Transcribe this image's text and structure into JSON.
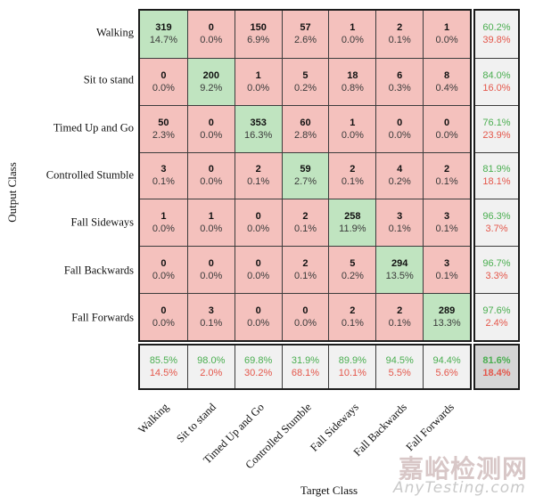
{
  "watermark": {
    "text": "嘉峪检测网",
    "url": "AnyTesting.com"
  },
  "colors": {
    "diagonal_cell": "#c0e4c0",
    "off_diagonal_cell": "#f4c1bd",
    "summary_cell": "#f1f1f1",
    "overall_cell": "#d5d5d5",
    "correct_text": "#4aae50",
    "incorrect_text": "#e4564a"
  },
  "chart_data": {
    "type": "heatmap",
    "title": "",
    "xlabel": "Target Class",
    "ylabel": "Output Class",
    "legend_position": "none",
    "grid": true,
    "classes": [
      "Walking",
      "Sit to stand",
      "Timed Up and Go",
      "Controlled Stumble",
      "Fall Sideways",
      "Fall Backwards",
      "Fall Forwards"
    ],
    "counts": [
      [
        319,
        0,
        150,
        57,
        1,
        2,
        1
      ],
      [
        0,
        200,
        1,
        5,
        18,
        6,
        8
      ],
      [
        50,
        0,
        353,
        60,
        1,
        0,
        0
      ],
      [
        3,
        0,
        2,
        59,
        2,
        4,
        2
      ],
      [
        1,
        1,
        0,
        2,
        258,
        3,
        3
      ],
      [
        0,
        0,
        0,
        2,
        5,
        294,
        3
      ],
      [
        0,
        3,
        0,
        0,
        2,
        2,
        289
      ]
    ],
    "cell_percents": [
      [
        "14.7%",
        "0.0%",
        "6.9%",
        "2.6%",
        "0.0%",
        "0.1%",
        "0.0%"
      ],
      [
        "0.0%",
        "9.2%",
        "0.0%",
        "0.2%",
        "0.8%",
        "0.3%",
        "0.4%"
      ],
      [
        "2.3%",
        "0.0%",
        "16.3%",
        "2.8%",
        "0.0%",
        "0.0%",
        "0.0%"
      ],
      [
        "0.1%",
        "0.0%",
        "0.1%",
        "2.7%",
        "0.1%",
        "0.2%",
        "0.1%"
      ],
      [
        "0.0%",
        "0.0%",
        "0.0%",
        "0.1%",
        "11.9%",
        "0.1%",
        "0.1%"
      ],
      [
        "0.0%",
        "0.0%",
        "0.0%",
        "0.1%",
        "0.2%",
        "13.5%",
        "0.1%"
      ],
      [
        "0.0%",
        "0.1%",
        "0.0%",
        "0.0%",
        "0.1%",
        "0.1%",
        "13.3%"
      ]
    ],
    "row_summaries": [
      [
        "60.2%",
        "39.8%"
      ],
      [
        "84.0%",
        "16.0%"
      ],
      [
        "76.1%",
        "23.9%"
      ],
      [
        "81.9%",
        "18.1%"
      ],
      [
        "96.3%",
        "3.7%"
      ],
      [
        "96.7%",
        "3.3%"
      ],
      [
        "97.6%",
        "2.4%"
      ]
    ],
    "col_summaries": [
      [
        "85.5%",
        "14.5%"
      ],
      [
        "98.0%",
        "2.0%"
      ],
      [
        "69.8%",
        "30.2%"
      ],
      [
        "31.9%",
        "68.1%"
      ],
      [
        "89.9%",
        "10.1%"
      ],
      [
        "94.5%",
        "5.5%"
      ],
      [
        "94.4%",
        "5.6%"
      ]
    ],
    "overall": [
      "81.6%",
      "18.4%"
    ]
  }
}
